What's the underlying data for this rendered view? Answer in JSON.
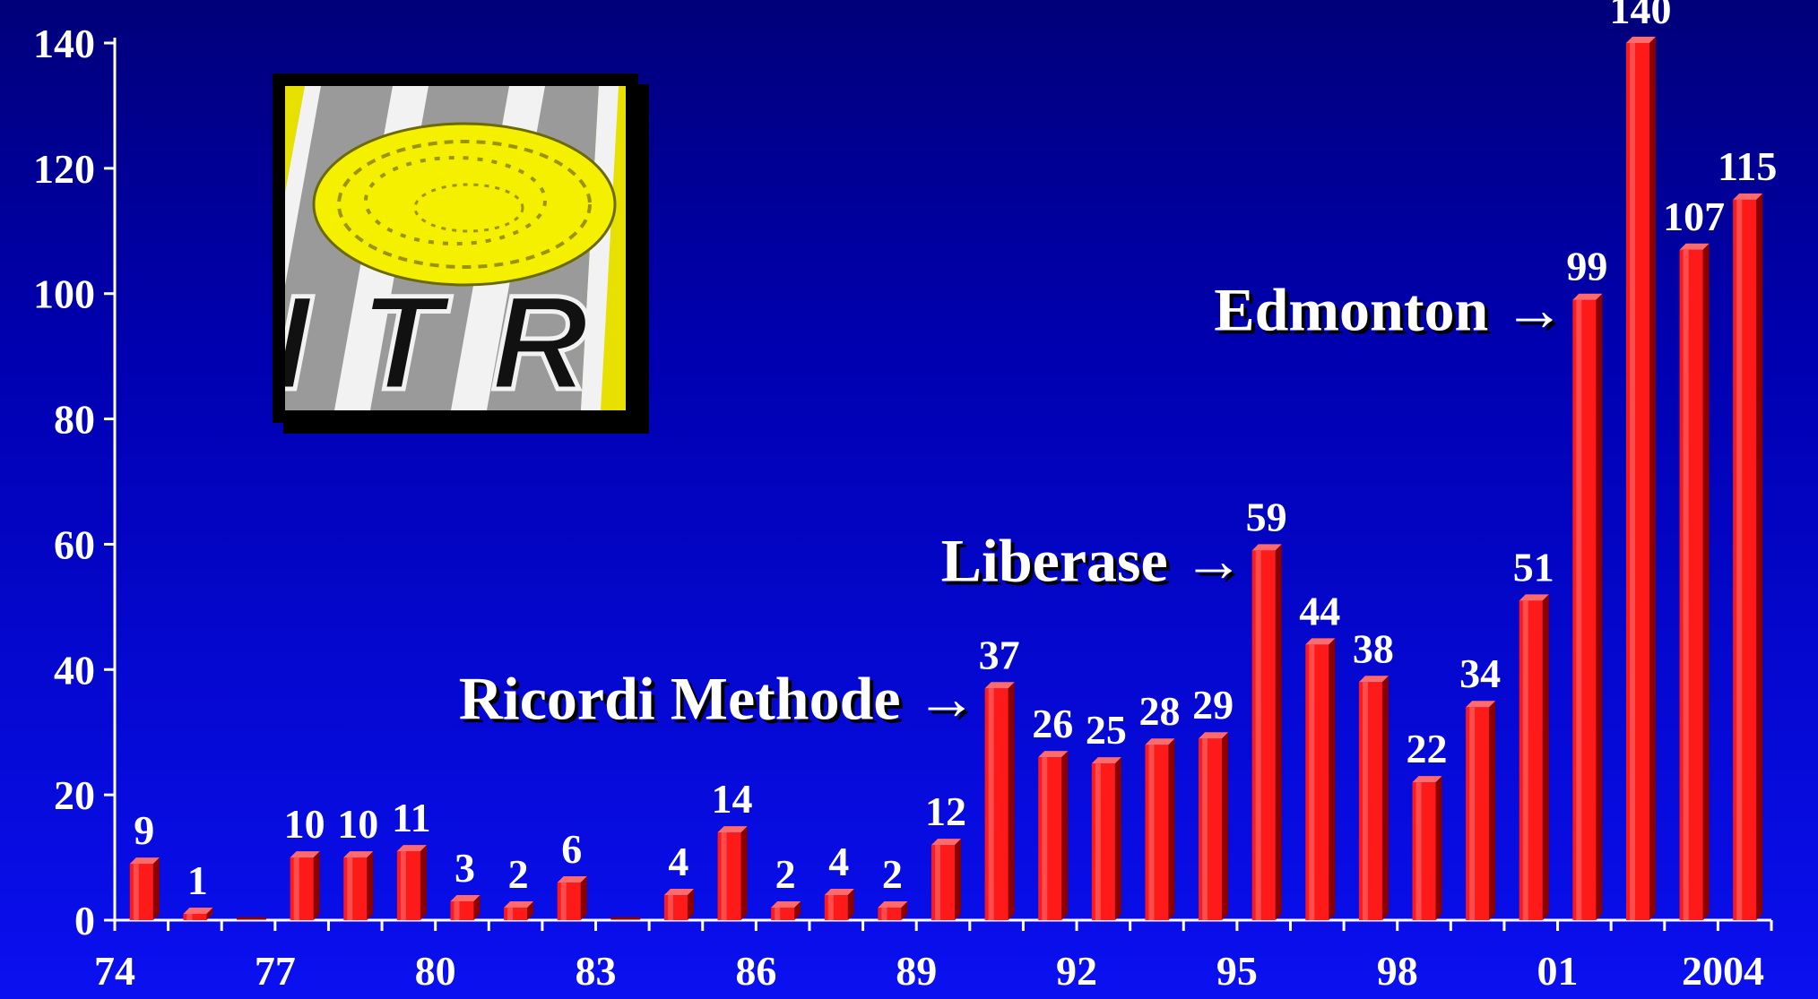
{
  "colors": {
    "bar_front": "#ff1a1a",
    "bar_side": "#8a0000",
    "bar_top": "#ff6a6a",
    "axis": "#ffffff",
    "text": "#ffffff"
  },
  "logo": {
    "text": "ITR",
    "icon": "islet-icon"
  },
  "chart_data": {
    "type": "bar",
    "title": "",
    "xlabel": "",
    "ylabel": "",
    "ylim": [
      0,
      140
    ],
    "yticks": [
      0,
      20,
      40,
      60,
      80,
      100,
      120,
      140
    ],
    "grid": false,
    "legend": "none",
    "categories": [
      "74",
      "75",
      "76",
      "77",
      "78",
      "79",
      "80",
      "81",
      "82",
      "83",
      "84",
      "85",
      "86",
      "87",
      "88",
      "89",
      "90",
      "91",
      "92",
      "93",
      "94",
      "95",
      "96",
      "97",
      "98",
      "99",
      "00",
      "01",
      "02",
      "03",
      "2004"
    ],
    "x_tick_labels": [
      "74",
      "",
      "",
      "77",
      "",
      "",
      "80",
      "",
      "",
      "83",
      "",
      "",
      "86",
      "",
      "",
      "89",
      "",
      "",
      "92",
      "",
      "",
      "95",
      "",
      "",
      "98",
      "",
      "",
      "01",
      "",
      "",
      "2004"
    ],
    "values": [
      9,
      1,
      0,
      10,
      10,
      11,
      3,
      2,
      6,
      0,
      4,
      14,
      2,
      4,
      2,
      12,
      37,
      26,
      25,
      28,
      29,
      59,
      44,
      38,
      22,
      34,
      51,
      99,
      140,
      107,
      115
    ],
    "value_labels": [
      "9",
      "1",
      "",
      "10",
      "10",
      "11",
      "3",
      "2",
      "6",
      "",
      "4",
      "14",
      "2",
      "4",
      "2",
      "12",
      "37",
      "26",
      "25",
      "28",
      "29",
      "59",
      "44",
      "38",
      "22",
      "34",
      "51",
      "99",
      "140",
      "107",
      "115"
    ],
    "annotations": [
      {
        "text": "Ricordi Methode",
        "arrow": "→",
        "target_category": "90"
      },
      {
        "text": "Liberase",
        "arrow": "→",
        "target_category": "95"
      },
      {
        "text": "Edmonton",
        "arrow": "→",
        "target_category": "01"
      }
    ]
  }
}
